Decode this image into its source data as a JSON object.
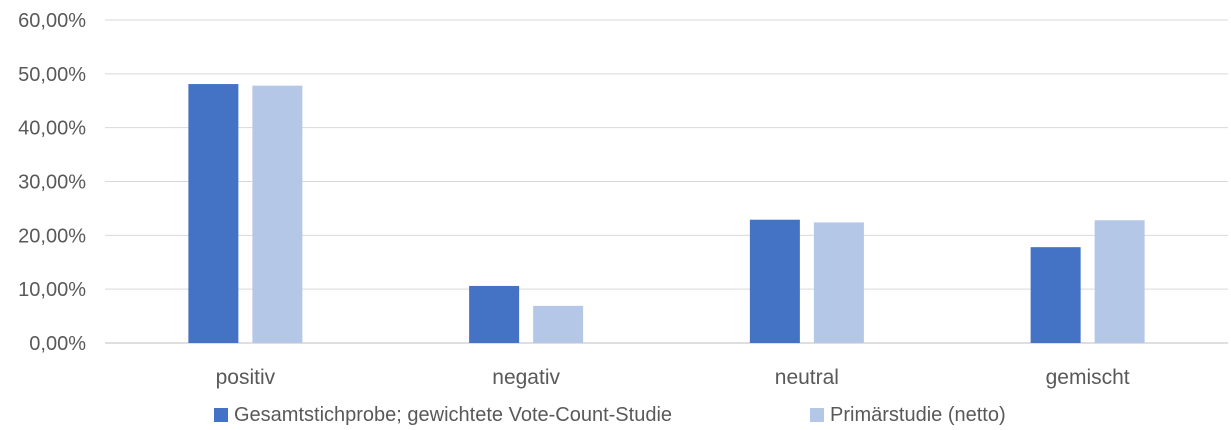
{
  "chart_data": {
    "type": "bar",
    "categories": [
      "positiv",
      "negativ",
      "neutral",
      "gemischt"
    ],
    "series": [
      {
        "name": "Gesamtstichprobe; gewichtete Vote-Count-Studie",
        "color": "#4472C4",
        "values": [
          48.1,
          10.6,
          22.9,
          17.8
        ]
      },
      {
        "name": "Primärstudie (netto)",
        "color": "#B4C7E7",
        "values": [
          47.8,
          6.9,
          22.4,
          22.8
        ]
      }
    ],
    "yticks": [
      "0,00%",
      "10,00%",
      "20,00%",
      "30,00%",
      "40,00%",
      "50,00%",
      "60,00%"
    ],
    "ylim": [
      0,
      60
    ],
    "grid": true,
    "legend_position": "bottom",
    "title": "",
    "xlabel": "",
    "ylabel": ""
  }
}
